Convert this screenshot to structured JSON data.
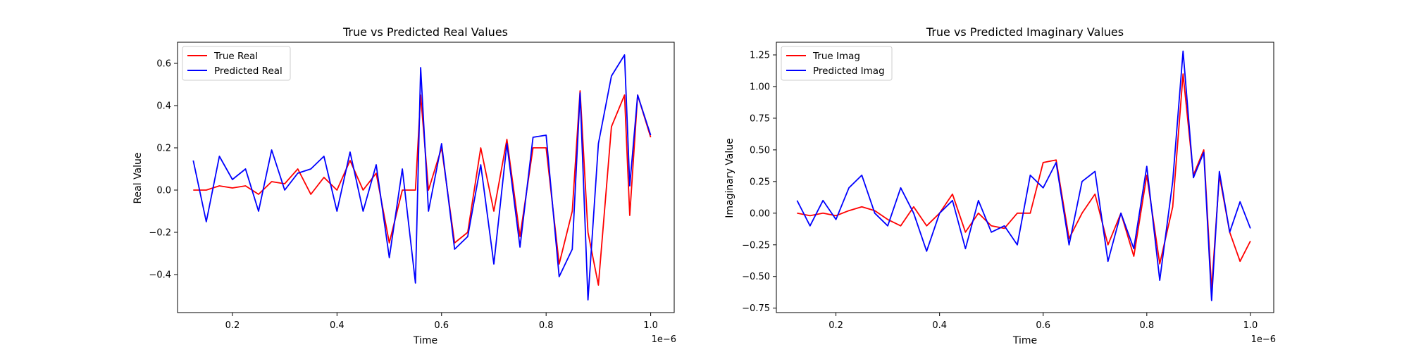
{
  "chart_data": [
    {
      "type": "line",
      "title": "True vs Predicted Real Values",
      "xlabel": "Time",
      "ylabel": "Real Value",
      "x_offset_label": "1e−6",
      "xlim": [
        0.095,
        1.045
      ],
      "ylim": [
        -0.58,
        0.7
      ],
      "xticks": [
        0.2,
        0.4,
        0.6,
        0.8,
        1.0
      ],
      "xtick_labels": [
        "0.2",
        "0.4",
        "0.6",
        "0.8",
        "1.0"
      ],
      "yticks": [
        -0.4,
        -0.2,
        0.0,
        0.2,
        0.4,
        0.6
      ],
      "ytick_labels": [
        "−0.4",
        "−0.2",
        "0.0",
        "0.2",
        "0.4",
        "0.6"
      ],
      "legend_position": "upper-left",
      "grid": false,
      "x": [
        0.125,
        0.15,
        0.175,
        0.2,
        0.225,
        0.25,
        0.275,
        0.3,
        0.325,
        0.35,
        0.375,
        0.4,
        0.425,
        0.45,
        0.475,
        0.5,
        0.525,
        0.55,
        0.56,
        0.575,
        0.6,
        0.625,
        0.65,
        0.675,
        0.7,
        0.725,
        0.75,
        0.775,
        0.8,
        0.825,
        0.85,
        0.865,
        0.88,
        0.9,
        0.925,
        0.95,
        0.96,
        0.975,
        1.0
      ],
      "series": [
        {
          "name": "True Real",
          "color": "#ff0000",
          "values": [
            0.0,
            0.0,
            0.02,
            0.01,
            0.02,
            -0.02,
            0.04,
            0.03,
            0.1,
            -0.02,
            0.06,
            0.0,
            0.14,
            0.0,
            0.08,
            -0.25,
            0.0,
            0.0,
            0.45,
            0.0,
            0.2,
            -0.25,
            -0.2,
            0.2,
            -0.1,
            0.24,
            -0.22,
            0.2,
            0.2,
            -0.35,
            -0.1,
            0.47,
            -0.2,
            -0.45,
            0.3,
            0.45,
            -0.12,
            0.45,
            0.25
          ]
        },
        {
          "name": "Predicted Real",
          "color": "#0000ff",
          "values": [
            0.14,
            -0.15,
            0.16,
            0.05,
            0.1,
            -0.1,
            0.19,
            0.0,
            0.08,
            0.1,
            0.16,
            -0.1,
            0.18,
            -0.1,
            0.12,
            -0.32,
            0.1,
            -0.44,
            0.58,
            -0.1,
            0.22,
            -0.28,
            -0.22,
            0.12,
            -0.35,
            0.22,
            -0.27,
            0.25,
            0.26,
            -0.41,
            -0.28,
            0.46,
            -0.52,
            0.22,
            0.54,
            0.64,
            0.02,
            0.45,
            0.26
          ]
        }
      ]
    },
    {
      "type": "line",
      "title": "True vs Predicted Imaginary Values",
      "xlabel": "Time",
      "ylabel": "Imaginary Value",
      "x_offset_label": "1e−6",
      "xlim": [
        0.085,
        1.045
      ],
      "ylim": [
        -0.785,
        1.35
      ],
      "xticks": [
        0.2,
        0.4,
        0.6,
        0.8,
        1.0
      ],
      "xtick_labels": [
        "0.2",
        "0.4",
        "0.6",
        "0.8",
        "1.0"
      ],
      "yticks": [
        -0.75,
        -0.5,
        -0.25,
        0.0,
        0.25,
        0.5,
        0.75,
        1.0,
        1.25
      ],
      "ytick_labels": [
        "−0.75",
        "−0.50",
        "−0.25",
        "0.00",
        "0.25",
        "0.50",
        "0.75",
        "1.00",
        "1.25"
      ],
      "legend_position": "upper-left",
      "grid": false,
      "x": [
        0.125,
        0.15,
        0.175,
        0.2,
        0.225,
        0.25,
        0.275,
        0.3,
        0.325,
        0.35,
        0.375,
        0.4,
        0.425,
        0.45,
        0.475,
        0.5,
        0.525,
        0.55,
        0.575,
        0.6,
        0.625,
        0.65,
        0.675,
        0.7,
        0.725,
        0.75,
        0.775,
        0.8,
        0.825,
        0.85,
        0.87,
        0.89,
        0.91,
        0.925,
        0.94,
        0.96,
        0.98,
        1.0
      ],
      "series": [
        {
          "name": "True Imag",
          "color": "#ff0000",
          "values": [
            0.0,
            -0.02,
            0.0,
            -0.02,
            0.02,
            0.05,
            0.02,
            -0.05,
            -0.1,
            0.05,
            -0.1,
            0.0,
            0.15,
            -0.15,
            0.0,
            -0.1,
            -0.12,
            0.0,
            0.0,
            0.4,
            0.42,
            -0.2,
            0.0,
            0.15,
            -0.25,
            0.0,
            -0.34,
            0.3,
            -0.4,
            0.05,
            1.1,
            0.3,
            0.5,
            -0.6,
            0.3,
            -0.15,
            -0.38,
            -0.22
          ]
        },
        {
          "name": "Predicted Imag",
          "color": "#0000ff",
          "values": [
            0.1,
            -0.1,
            0.1,
            -0.05,
            0.2,
            0.3,
            0.0,
            -0.1,
            0.2,
            0.0,
            -0.3,
            0.0,
            0.1,
            -0.28,
            0.1,
            -0.15,
            -0.1,
            -0.25,
            0.3,
            0.2,
            0.4,
            -0.25,
            0.25,
            0.33,
            -0.38,
            0.0,
            -0.28,
            0.37,
            -0.53,
            0.25,
            1.28,
            0.28,
            0.48,
            -0.69,
            0.33,
            -0.15,
            0.09,
            -0.12
          ]
        }
      ]
    }
  ]
}
